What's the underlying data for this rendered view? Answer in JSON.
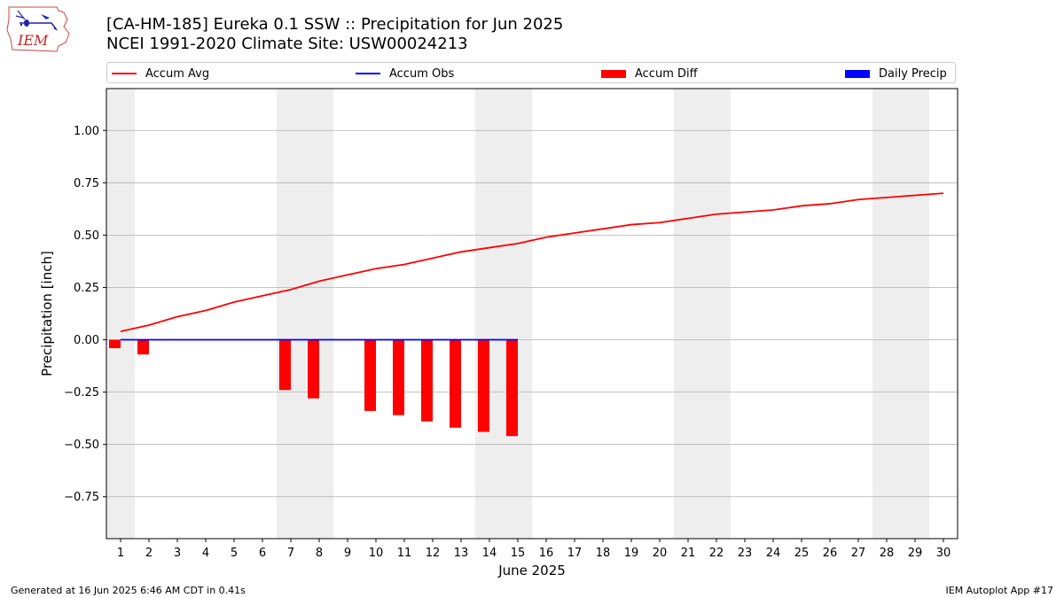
{
  "header": {
    "title_line1": "[CA-HM-185] Eureka 0.1 SSW :: Precipitation for Jun 2025",
    "title_line2": "NCEI 1991-2020 Climate Site: USW00024213",
    "logo_text": "IEM"
  },
  "legend": {
    "accum_avg": "Accum Avg",
    "accum_obs": "Accum Obs",
    "accum_diff": "Accum Diff",
    "daily_precip": "Daily Precip"
  },
  "footer": {
    "generated": "Generated at 16 Jun 2025 6:46 AM CDT in 0.41s",
    "app": "IEM Autoplot App #17"
  },
  "colors": {
    "avg": "#ff0000",
    "obs": "#0000ff",
    "diff": "#ff0000",
    "daily": "#0000ff",
    "weekend_band": "#eeeeee",
    "grid": "#b0b0b0"
  },
  "chart_data": {
    "type": "line",
    "xlabel": "June 2025",
    "ylabel": "Precipitation [inch]",
    "xlim": [
      0.5,
      30.5
    ],
    "ylim": [
      -0.95,
      1.2
    ],
    "yticks": [
      -0.75,
      -0.5,
      -0.25,
      0.0,
      0.25,
      0.5,
      0.75,
      1.0
    ],
    "ytick_labels": [
      "−0.75",
      "−0.50",
      "−0.25",
      "0.00",
      "0.25",
      "0.50",
      "0.75",
      "1.00"
    ],
    "days": [
      1,
      2,
      3,
      4,
      5,
      6,
      7,
      8,
      9,
      10,
      11,
      12,
      13,
      14,
      15,
      16,
      17,
      18,
      19,
      20,
      21,
      22,
      23,
      24,
      25,
      26,
      27,
      28,
      29,
      30
    ],
    "weekend_bands": [
      [
        0.5,
        1.5
      ],
      [
        6.5,
        8.5
      ],
      [
        13.5,
        15.5
      ],
      [
        20.5,
        22.5
      ],
      [
        27.5,
        29.5
      ]
    ],
    "grid": "horizontal",
    "legend_position": "top",
    "series": [
      {
        "name": "Accum Avg",
        "kind": "line",
        "x": [
          1,
          2,
          3,
          4,
          5,
          6,
          7,
          8,
          9,
          10,
          11,
          12,
          13,
          14,
          15,
          16,
          17,
          18,
          19,
          20,
          21,
          22,
          23,
          24,
          25,
          26,
          27,
          28,
          29,
          30
        ],
        "values": [
          0.04,
          0.07,
          0.11,
          0.14,
          0.18,
          0.21,
          0.24,
          0.28,
          0.31,
          0.34,
          0.36,
          0.39,
          0.42,
          0.44,
          0.46,
          0.49,
          0.51,
          0.53,
          0.55,
          0.56,
          0.58,
          0.6,
          0.61,
          0.62,
          0.64,
          0.65,
          0.67,
          0.68,
          0.69,
          0.7
        ]
      },
      {
        "name": "Accum Obs",
        "kind": "line",
        "x": [
          1,
          2,
          3,
          4,
          5,
          6,
          7,
          8,
          9,
          10,
          11,
          12,
          13,
          14,
          15
        ],
        "values": [
          0,
          0,
          0,
          0,
          0,
          0,
          0,
          0,
          0,
          0,
          0,
          0,
          0,
          0,
          0
        ]
      },
      {
        "name": "Accum Diff",
        "kind": "bar",
        "x": [
          1,
          2,
          7,
          8,
          10,
          11,
          12,
          13,
          14,
          15
        ],
        "values": [
          -0.04,
          -0.07,
          -0.24,
          -0.28,
          -0.34,
          -0.36,
          -0.39,
          -0.42,
          -0.44,
          -0.46
        ]
      },
      {
        "name": "Daily Precip",
        "kind": "bar",
        "x": [],
        "values": []
      }
    ]
  }
}
